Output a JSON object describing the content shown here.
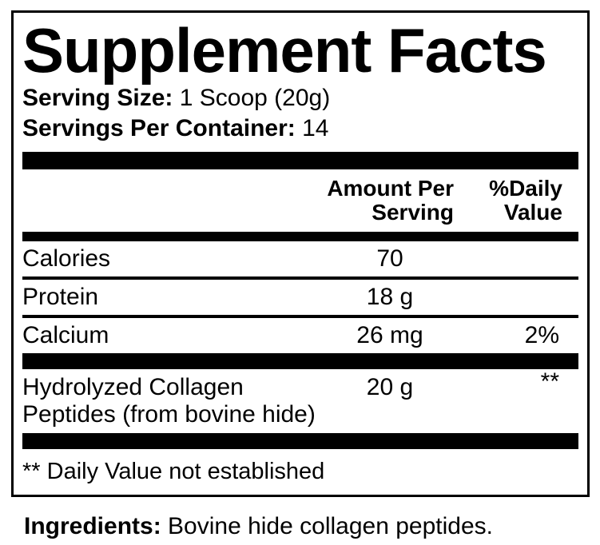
{
  "panel": {
    "title": "Supplement Facts",
    "serving": {
      "size_label": "Serving Size:",
      "size_value": " 1 Scoop (20g)",
      "per_container_label": "Servings Per Container:",
      "per_container_value": " 14"
    },
    "columns": {
      "amount_header": "Amount Per Serving",
      "dv_header": "%Daily Value"
    },
    "rows": [
      {
        "name": "Calories",
        "amount": "70",
        "dv": ""
      },
      {
        "name": "Protein",
        "amount": "18 g",
        "dv": ""
      },
      {
        "name": "Calcium",
        "amount": "26 mg",
        "dv": "2%"
      },
      {
        "name": "Hydrolyzed Collagen",
        "name2": "Peptides (from bovine hide)",
        "amount": "20 g",
        "dv": "**"
      }
    ],
    "footnote": "** Daily Value not established",
    "ingredients": {
      "label": "Ingredients:",
      "value": " Bovine hide collagen peptides."
    },
    "colors": {
      "ink": "#000000",
      "background": "#ffffff"
    }
  }
}
